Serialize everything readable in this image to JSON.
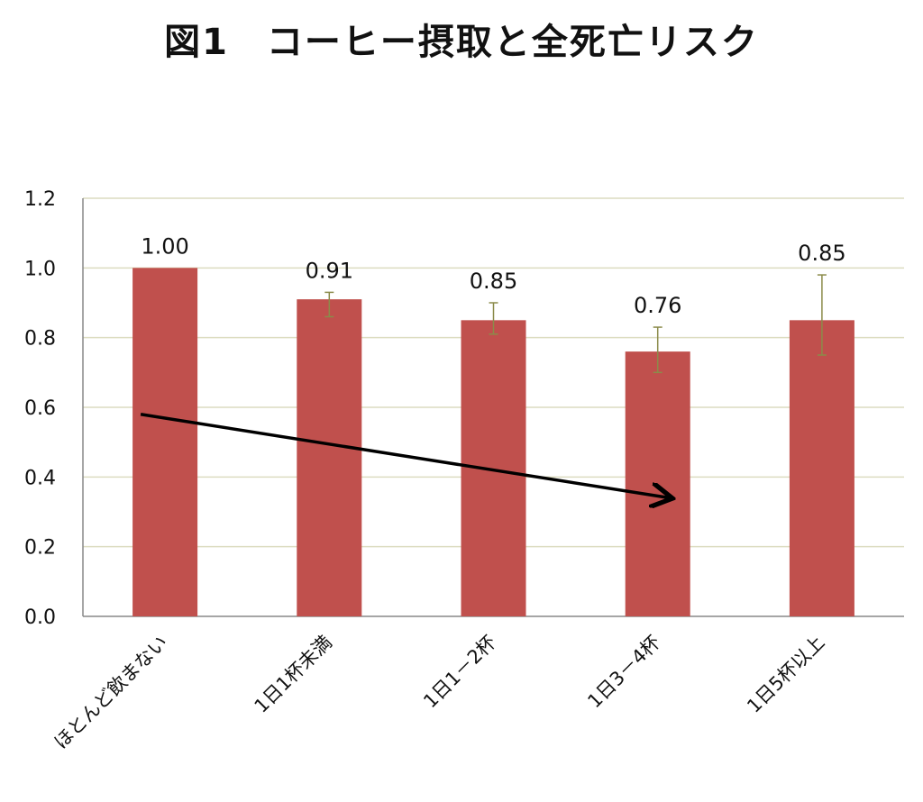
{
  "chart_data": {
    "type": "bar",
    "title": "図1　コーヒー摂取と全死亡リスク",
    "xlabel": "",
    "ylabel": "",
    "categories": [
      "ほとんど飲まない",
      "1日1杯未満",
      "1日1－2杯",
      "1日3－4杯",
      "1日5杯以上"
    ],
    "values": [
      1.0,
      0.91,
      0.85,
      0.76,
      0.85
    ],
    "data_labels": [
      "1.00",
      "0.91",
      "0.85",
      "0.76",
      "0.85"
    ],
    "error_low": [
      1.0,
      0.86,
      0.81,
      0.7,
      0.75
    ],
    "error_high": [
      1.0,
      0.93,
      0.9,
      0.83,
      0.98
    ],
    "ylim": [
      0,
      1.2
    ],
    "yticks": [
      "0.0",
      "0.2",
      "0.4",
      "0.6",
      "0.8",
      "1.0",
      "1.2"
    ],
    "grid": true,
    "legend": "none",
    "trend_arrow": {
      "from": {
        "category_index": 0,
        "y": 0.58
      },
      "to": {
        "category_index": 3,
        "y": 0.34
      }
    },
    "colors": {
      "bar": "#c0504d",
      "error_bar": "#8b8b4a",
      "grid": "#dcdcc0",
      "arrow": "#000000"
    }
  }
}
